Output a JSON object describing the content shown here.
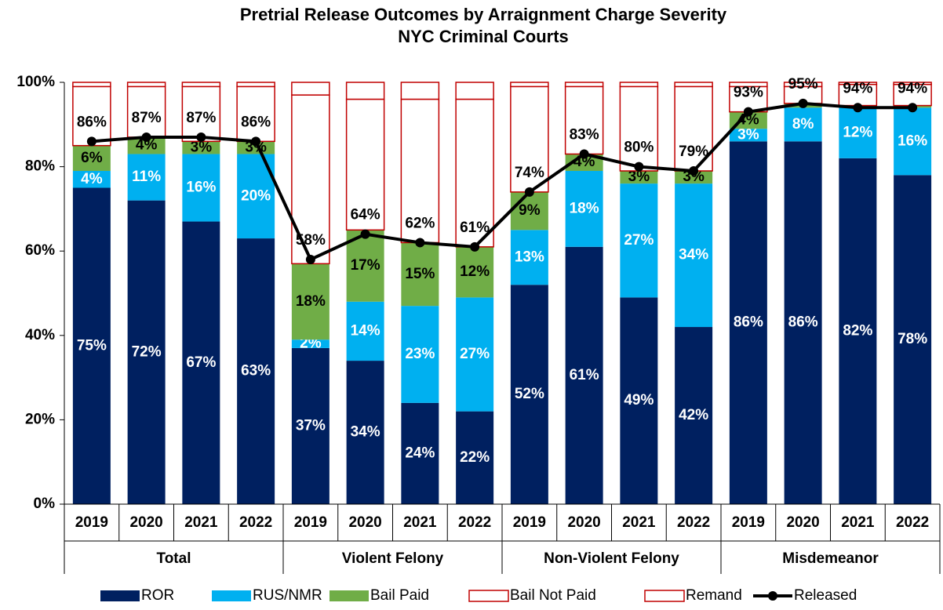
{
  "chart_data": {
    "type": "stacked_bar_line",
    "title": "Pretrial Release Outcomes by Arraignment Charge Severity",
    "subtitle": "NYC Criminal Courts",
    "categories": [
      "2019",
      "2020",
      "2021",
      "2022",
      "2019",
      "2020",
      "2021",
      "2022",
      "2019",
      "2020",
      "2021",
      "2022",
      "2019",
      "2020",
      "2021",
      "2022"
    ],
    "groups": [
      "Total",
      "Violent Felony",
      "Non-Violent Felony",
      "Misdemeanor"
    ],
    "ylim": [
      0,
      100
    ],
    "yticks": [
      {
        "value": 0,
        "label": "0%"
      },
      {
        "value": 20,
        "label": "20%"
      },
      {
        "value": 40,
        "label": "40%"
      },
      {
        "value": 60,
        "label": "60%"
      },
      {
        "value": 80,
        "label": "80%"
      },
      {
        "value": 100,
        "label": "100%"
      }
    ],
    "series": [
      {
        "name": "ROR",
        "color": "#002060",
        "label_color": "#ffffff",
        "values": [
          75,
          72,
          67,
          63,
          37,
          34,
          24,
          22,
          52,
          61,
          49,
          42,
          86,
          86,
          82,
          78
        ],
        "value_labels": [
          "75%",
          "72%",
          "67%",
          "63%",
          "37%",
          "34%",
          "24%",
          "22%",
          "52%",
          "61%",
          "49%",
          "42%",
          "86%",
          "86%",
          "82%",
          "78%"
        ]
      },
      {
        "name": "RUS/NMR",
        "color": "#00b0f0",
        "label_color": "#ffffff",
        "values": [
          4,
          11,
          16,
          20,
          2,
          14,
          23,
          27,
          13,
          18,
          27,
          34,
          3,
          8,
          12,
          16
        ],
        "value_labels": [
          "4%",
          "11%",
          "16%",
          "20%",
          "2%",
          "14%",
          "23%",
          "27%",
          "13%",
          "18%",
          "27%",
          "34%",
          "3%",
          "8%",
          "12%",
          "16%"
        ]
      },
      {
        "name": "Bail Paid",
        "color": "#70ad47",
        "label_color": "#000000",
        "values": [
          6,
          4,
          3,
          3,
          18,
          17,
          15,
          12,
          9,
          4,
          3,
          3,
          4,
          1,
          0.5,
          0.5
        ],
        "value_labels": [
          "6%",
          "4%",
          "3%",
          "3%",
          "18%",
          "17%",
          "15%",
          "12%",
          "9%",
          "4%",
          "3%",
          "3%",
          "4%",
          null,
          null,
          null
        ]
      },
      {
        "name": "Bail Not Paid",
        "color": "#ffffff",
        "edge": "#c00000",
        "values": [
          14,
          12,
          13,
          13,
          40,
          31,
          34,
          35,
          25,
          16,
          20,
          20,
          6,
          4,
          5,
          5
        ]
      },
      {
        "name": "Remand",
        "color": "#ffffff",
        "edge": "#c00000",
        "values": [
          1,
          1,
          1,
          1,
          3,
          4,
          4,
          4,
          1,
          1,
          1,
          1,
          1,
          1,
          0.5,
          0.5
        ]
      },
      {
        "name": "Released",
        "type": "line",
        "color": "#000000",
        "label_color": "#000000",
        "values": [
          86,
          87,
          87,
          86,
          58,
          64,
          62,
          61,
          74,
          83,
          80,
          79,
          93,
          95,
          94,
          94
        ],
        "value_labels": [
          "86%",
          "87%",
          "87%",
          "86%",
          "58%",
          "64%",
          "62%",
          "61%",
          "74%",
          "83%",
          "80%",
          "79%",
          "93%",
          "95%",
          "94%",
          "94%"
        ]
      }
    ]
  }
}
